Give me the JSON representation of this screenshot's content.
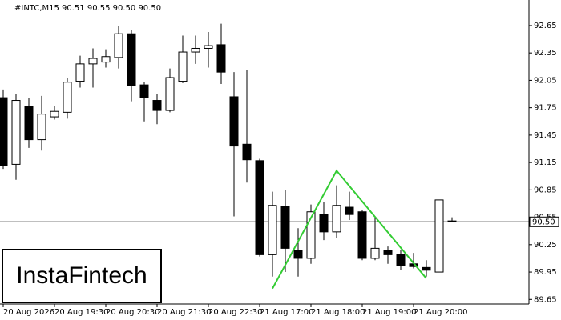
{
  "chart_data": {
    "type": "candlestick",
    "title": "#INTC,M15  90.51 90.55 90.50 90.50",
    "watermark": "InstaFintech",
    "categories": [
      "20 Aug 2026",
      null,
      null,
      null,
      "20 Aug 19:30",
      null,
      null,
      null,
      "20 Aug 20:30",
      null,
      null,
      null,
      "20 Aug 21:30",
      null,
      null,
      null,
      "20 Aug 22:30",
      null,
      null,
      null,
      "21 Aug 17:00",
      null,
      null,
      null,
      "21 Aug 18:00",
      null,
      null,
      null,
      "21 Aug 19:00",
      null,
      null,
      null,
      "21 Aug 20:00",
      null,
      null,
      null
    ],
    "open": [
      91.86,
      91.13,
      91.76,
      91.4,
      91.65,
      91.7,
      92.04,
      92.23,
      92.25,
      92.3,
      92.56,
      92.0,
      91.83,
      91.72,
      92.04,
      92.36,
      92.4,
      92.44,
      91.87,
      91.35,
      91.17,
      90.14,
      90.67,
      90.19,
      90.1,
      90.58,
      90.39,
      90.66,
      90.61,
      90.1,
      90.19,
      90.14,
      90.04,
      90.0,
      89.95,
      90.51
    ],
    "high": [
      91.95,
      91.9,
      91.86,
      91.88,
      91.77,
      92.08,
      92.32,
      92.4,
      92.39,
      92.65,
      92.6,
      92.03,
      91.9,
      92.18,
      92.54,
      92.54,
      92.58,
      92.67,
      92.14,
      92.16,
      91.19,
      90.83,
      90.85,
      90.43,
      90.69,
      90.72,
      90.9,
      90.83,
      90.63,
      90.54,
      90.23,
      90.19,
      90.16,
      90.08,
      90.74,
      90.55
    ],
    "low": [
      91.08,
      90.96,
      91.31,
      91.28,
      91.62,
      91.63,
      91.97,
      91.97,
      92.19,
      92.18,
      91.82,
      91.6,
      91.57,
      91.7,
      92.02,
      92.23,
      92.19,
      92.01,
      90.56,
      90.93,
      90.12,
      89.9,
      89.95,
      89.9,
      90.04,
      90.3,
      90.32,
      90.52,
      90.08,
      90.08,
      90.04,
      89.97,
      89.99,
      89.9,
      89.95,
      90.5
    ],
    "close": [
      91.12,
      91.83,
      91.4,
      91.68,
      91.71,
      92.03,
      92.23,
      92.29,
      92.31,
      92.56,
      91.99,
      91.86,
      91.72,
      92.08,
      92.36,
      92.4,
      92.43,
      92.14,
      91.33,
      91.18,
      90.14,
      90.68,
      90.21,
      90.1,
      90.61,
      90.39,
      90.68,
      90.58,
      90.1,
      90.21,
      90.14,
      90.02,
      90.01,
      89.97,
      90.74,
      90.5
    ],
    "up_color": "#ffffff",
    "down_color": "#000000",
    "ylim": [
      89.6,
      92.93
    ],
    "yticks": [
      92.65,
      92.35,
      92.05,
      91.75,
      91.45,
      91.15,
      90.85,
      90.55,
      90.25,
      89.95,
      89.65
    ],
    "price_line": {
      "value": 90.5,
      "label": "90.50"
    },
    "pattern": {
      "x": [
        21,
        26,
        33
      ],
      "y": [
        89.77,
        91.06,
        89.88
      ],
      "color": "#33cc33"
    }
  }
}
